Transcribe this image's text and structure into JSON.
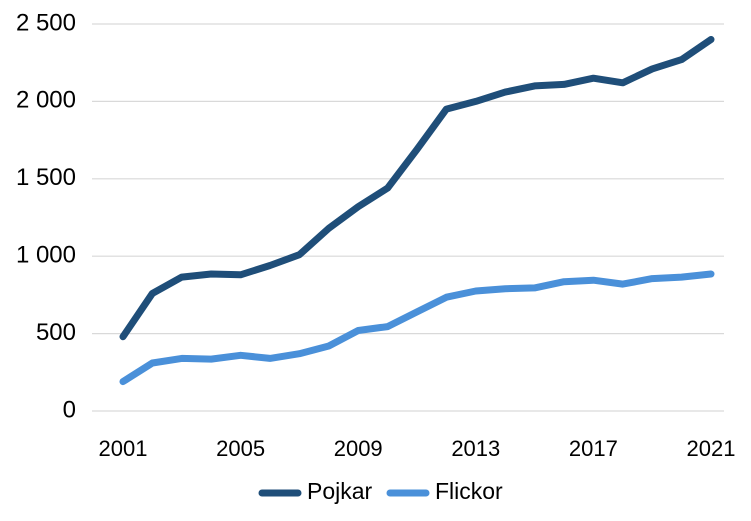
{
  "chart_data": {
    "type": "line",
    "title": "",
    "xlabel": "",
    "ylabel": "",
    "x": [
      2001,
      2002,
      2003,
      2004,
      2005,
      2006,
      2007,
      2008,
      2009,
      2010,
      2011,
      2012,
      2013,
      2014,
      2015,
      2016,
      2017,
      2018,
      2019,
      2020,
      2021
    ],
    "x_tick_labels": [
      "2001",
      "2005",
      "2009",
      "2013",
      "2017",
      "2021"
    ],
    "x_tick_values": [
      2001,
      2005,
      2009,
      2013,
      2017,
      2021
    ],
    "ylim": [
      0,
      2500
    ],
    "y_ticks": [
      0,
      500,
      1000,
      1500,
      2000,
      2500
    ],
    "y_tick_labels": [
      "0",
      "500",
      "1 000",
      "1 500",
      "2 000",
      "2 500"
    ],
    "grid": "horizontal",
    "legend_position": "bottom",
    "series": [
      {
        "name": "Pojkar",
        "color": "#1f4e79",
        "values": [
          480,
          760,
          865,
          885,
          880,
          940,
          1010,
          1180,
          1320,
          1440,
          1690,
          1950,
          2000,
          2060,
          2100,
          2110,
          2150,
          2120,
          2210,
          2270,
          2400
        ]
      },
      {
        "name": "Flickor",
        "color": "#4a90d9",
        "values": [
          190,
          310,
          340,
          335,
          360,
          340,
          370,
          420,
          520,
          545,
          640,
          735,
          775,
          790,
          795,
          835,
          845,
          820,
          855,
          865,
          885
        ]
      }
    ]
  }
}
